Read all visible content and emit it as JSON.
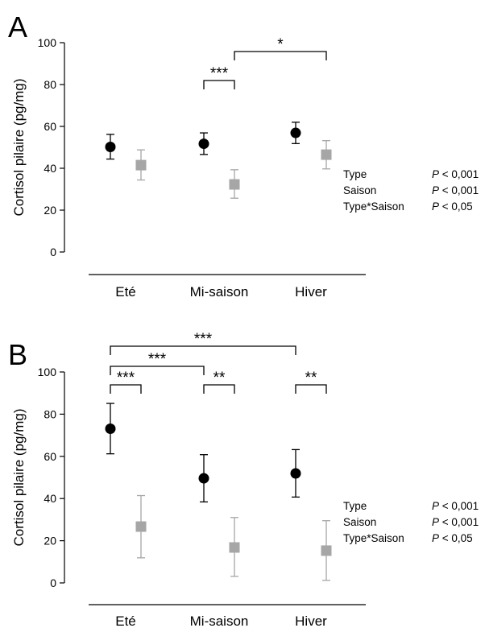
{
  "colors": {
    "type1": "#000000",
    "type2": "#a6a6a6",
    "axis": "#000000"
  },
  "chart_data": [
    {
      "type": "scatter",
      "panel": "A",
      "ylabel": "Cortisol pilaire (pg/mg)",
      "categories": [
        "Eté",
        "Mi-saison",
        "Hiver"
      ],
      "ylim": [
        0,
        100
      ],
      "yticks": [
        "0",
        "20",
        "40",
        "60",
        "80",
        "100"
      ],
      "grid": false,
      "series": [
        {
          "marker": "circle",
          "color": "#000000",
          "values": [
            50.2,
            51.7,
            56.9
          ],
          "err_low": [
            44.4,
            46.6,
            51.8
          ],
          "err_high": [
            56.2,
            56.9,
            62.0
          ]
        },
        {
          "marker": "square",
          "color": "#a6a6a6",
          "values": [
            41.5,
            32.3,
            46.5
          ],
          "err_low": [
            34.4,
            25.7,
            39.7
          ],
          "err_high": [
            48.8,
            39.3,
            53.2
          ]
        }
      ],
      "brackets": [
        {
          "from": "Mi-saison",
          "to": "Mi-saison",
          "label": "***"
        },
        {
          "from": "Mi-saison",
          "to": "Hiver",
          "label": "*"
        }
      ],
      "stats": [
        {
          "term": "Type",
          "p": "< 0,001"
        },
        {
          "term": "Saison",
          "p": "< 0,001"
        },
        {
          "term": "Type*Saison",
          "p": "< 0,05"
        }
      ]
    },
    {
      "type": "scatter",
      "panel": "B",
      "ylabel": "Cortisol pilaire (pg/mg)",
      "categories": [
        "Eté",
        "Mi-saison",
        "Hiver"
      ],
      "ylim": [
        0,
        100
      ],
      "yticks": [
        "0",
        "20",
        "40",
        "60",
        "80",
        "100"
      ],
      "grid": false,
      "series": [
        {
          "marker": "circle",
          "color": "#000000",
          "values": [
            73.1,
            49.6,
            51.9
          ],
          "err_low": [
            61.2,
            38.4,
            40.7
          ],
          "err_high": [
            85.1,
            60.8,
            63.2
          ]
        },
        {
          "marker": "square",
          "color": "#a6a6a6",
          "values": [
            26.7,
            16.8,
            15.3
          ],
          "err_low": [
            11.9,
            3.1,
            1.2
          ],
          "err_high": [
            41.4,
            31.0,
            29.5
          ]
        }
      ],
      "brackets": [
        {
          "from": "Eté",
          "to": "Eté",
          "label": "***"
        },
        {
          "from": "Mi-saison",
          "to": "Mi-saison",
          "label": "**"
        },
        {
          "from": "Hiver",
          "to": "Hiver",
          "label": "**"
        },
        {
          "from": "Eté",
          "to": "Mi-saison",
          "label": "***"
        },
        {
          "from": "Eté",
          "to": "Hiver",
          "label": "***"
        }
      ],
      "stats": [
        {
          "term": "Type",
          "p": "< 0,001"
        },
        {
          "term": "Saison",
          "p": "< 0,001"
        },
        {
          "term": "Type*Saison",
          "p": "< 0,05"
        }
      ]
    }
  ]
}
